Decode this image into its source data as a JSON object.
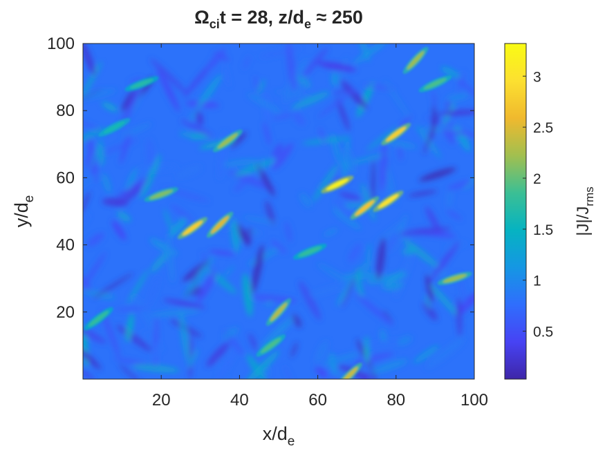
{
  "chart_data": {
    "type": "heatmap",
    "title": {
      "omega": "Ω",
      "omega_sub": "ci",
      "part1": "t = 28, z/d",
      "part1_sub": "e",
      "part2": " ≈ 250"
    },
    "xlabel": {
      "main": "x/d",
      "sub": "e"
    },
    "ylabel": {
      "main": "y/d",
      "sub": "e"
    },
    "xlim": [
      0,
      100
    ],
    "ylim": [
      0,
      100
    ],
    "xticks": [
      20,
      40,
      60,
      80,
      100
    ],
    "xtick_labels": [
      "20",
      "40",
      "60",
      "80",
      "100"
    ],
    "yticks": [
      20,
      40,
      60,
      80,
      100
    ],
    "ytick_labels": [
      "20",
      "40",
      "60",
      "80",
      "100"
    ],
    "colorbar": {
      "label": {
        "main": "|J|/J",
        "sub": "rms"
      },
      "range": [
        0.03,
        3.32
      ],
      "ticks": [
        0.5,
        1,
        1.5,
        2,
        2.5,
        3
      ],
      "tick_labels": [
        "0.5",
        "1",
        "1.5",
        "2",
        "2.5",
        "3"
      ],
      "colormap": "parula",
      "colormap_stops": [
        "#3e26a8",
        "#4743f4",
        "#2f6efd",
        "#1597e3",
        "#06b3c1",
        "#3cbf94",
        "#a2bf4f",
        "#f0b92e",
        "#fce030",
        "#f9fb14"
      ]
    },
    "field_description": "turbulent current density magnitude with thin filamentary structures",
    "background_level": 0.8,
    "features": [
      {
        "x": 65,
        "y": 58,
        "value": 3.2
      },
      {
        "x": 78,
        "y": 53,
        "value": 3.0
      },
      {
        "x": 80,
        "y": 73,
        "value": 2.8
      },
      {
        "x": 72,
        "y": 51,
        "value": 2.7
      },
      {
        "x": 28,
        "y": 45,
        "value": 2.8
      },
      {
        "x": 35,
        "y": 46,
        "value": 2.5
      },
      {
        "x": 50,
        "y": 20,
        "value": 2.3
      },
      {
        "x": 95,
        "y": 30,
        "value": 2.2
      },
      {
        "x": 20,
        "y": 55,
        "value": 2.1
      },
      {
        "x": 68,
        "y": 1,
        "value": 2.4
      },
      {
        "x": 85,
        "y": 95,
        "value": 2.2
      },
      {
        "x": 37,
        "y": 71,
        "value": 2.2
      },
      {
        "x": 48,
        "y": 10,
        "value": 1.9
      },
      {
        "x": 4,
        "y": 18,
        "value": 1.8
      },
      {
        "x": 58,
        "y": 38,
        "value": 1.8
      },
      {
        "x": 90,
        "y": 88,
        "value": 1.9
      },
      {
        "x": 15,
        "y": 88,
        "value": 1.7
      },
      {
        "x": 8,
        "y": 75,
        "value": 1.6
      }
    ]
  }
}
